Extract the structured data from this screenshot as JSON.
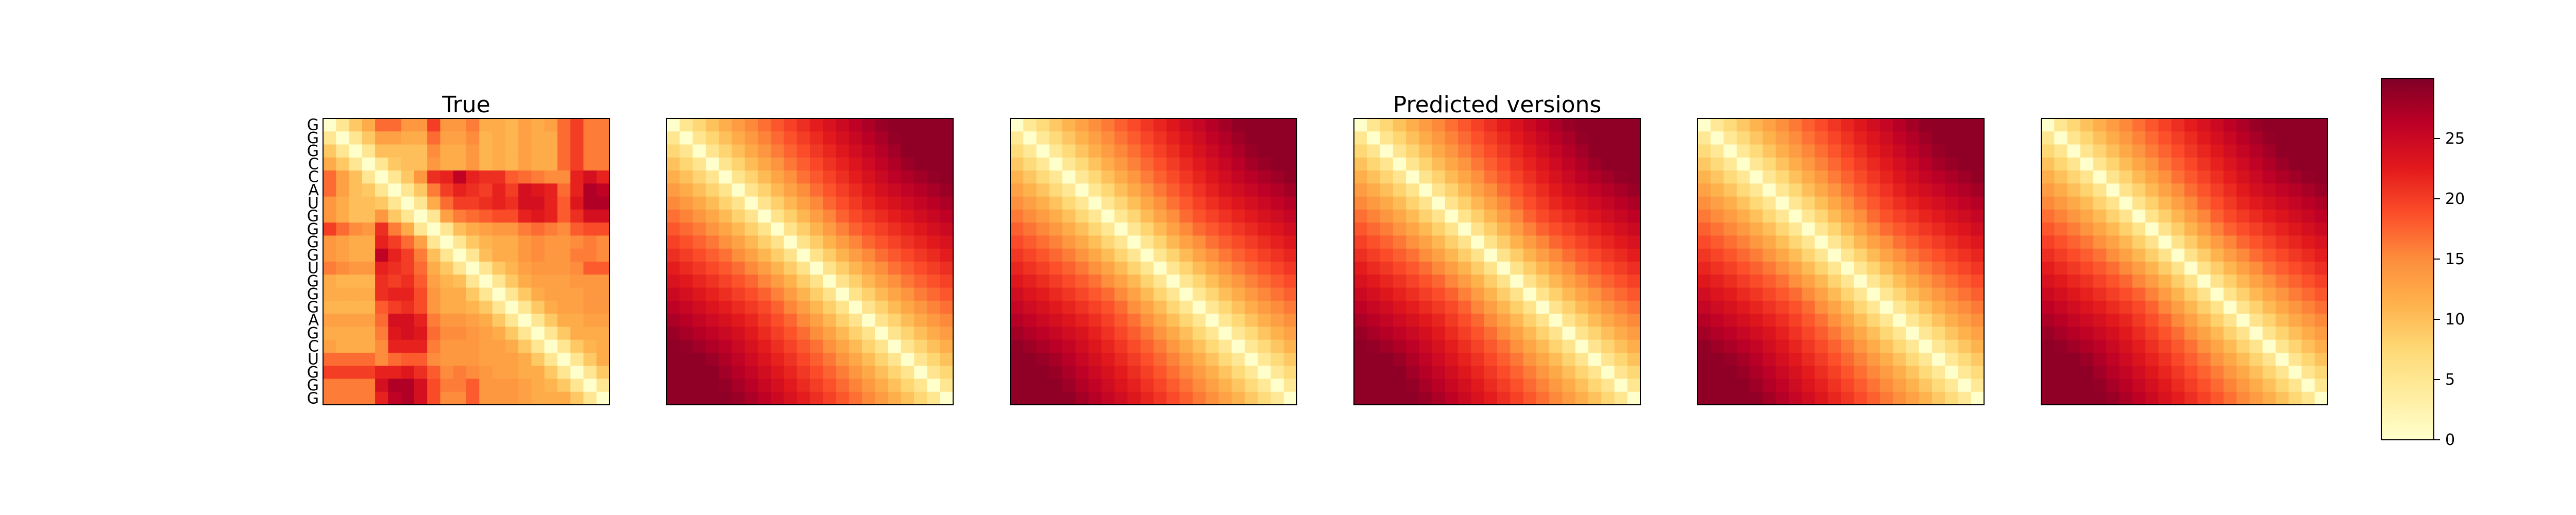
{
  "chart_data": {
    "type": "heatmap",
    "colormap": "YlOrRd",
    "sequence": [
      "G",
      "G",
      "G",
      "C",
      "C",
      "A",
      "U",
      "G",
      "G",
      "G",
      "G",
      "U",
      "G",
      "G",
      "G",
      "A",
      "G",
      "C",
      "U",
      "G",
      "G",
      "G"
    ],
    "panels": [
      {
        "title": "True",
        "kind": "true"
      },
      {
        "title": "",
        "kind": "predicted"
      },
      {
        "title": "",
        "kind": "predicted"
      },
      {
        "title": "Predicted versions",
        "kind": "predicted"
      },
      {
        "title": "",
        "kind": "predicted"
      },
      {
        "title": "",
        "kind": "predicted"
      }
    ],
    "colorbar": {
      "vmin": 0,
      "vmax": 30,
      "ticks": [
        0,
        5,
        10,
        15,
        20,
        25
      ],
      "tick_labels": [
        "0",
        "5",
        "10",
        "15",
        "20",
        "25"
      ]
    },
    "true_matrix_note": "",
    "true_values": [
      [
        0,
        5,
        9,
        12,
        17,
        17,
        14,
        14,
        20,
        14,
        14,
        16,
        12,
        12,
        11,
        13,
        12,
        13,
        17,
        20,
        16,
        16
      ],
      [
        5,
        0,
        5,
        9,
        13,
        13,
        12,
        12,
        17,
        13,
        13,
        15,
        11,
        12,
        11,
        13,
        12,
        12,
        17,
        20,
        16,
        16
      ],
      [
        9,
        5,
        0,
        5,
        10,
        10,
        10,
        10,
        15,
        12,
        12,
        14,
        11,
        12,
        11,
        13,
        12,
        12,
        17,
        20,
        16,
        16
      ],
      [
        12,
        9,
        5,
        0,
        5,
        9,
        10,
        10,
        14,
        12,
        12,
        14,
        11,
        12,
        11,
        13,
        12,
        12,
        17,
        20,
        16,
        16
      ],
      [
        17,
        13,
        10,
        5,
        0,
        5,
        9,
        14,
        21,
        22,
        26,
        22,
        21,
        21,
        18,
        17,
        16,
        15,
        15,
        22,
        24,
        22
      ],
      [
        17,
        13,
        10,
        9,
        5,
        0,
        5,
        9,
        16,
        20,
        22,
        21,
        20,
        22,
        20,
        24,
        23,
        22,
        17,
        22,
        27,
        26
      ],
      [
        14,
        12,
        10,
        10,
        9,
        5,
        0,
        5,
        12,
        17,
        20,
        20,
        21,
        22,
        21,
        24,
        24,
        22,
        18,
        23,
        27,
        27
      ],
      [
        14,
        12,
        10,
        10,
        14,
        9,
        5,
        0,
        5,
        13,
        16,
        17,
        18,
        19,
        19,
        22,
        23,
        22,
        18,
        21,
        24,
        24
      ],
      [
        20,
        17,
        15,
        14,
        21,
        16,
        12,
        5,
        0,
        5,
        10,
        12,
        13,
        14,
        14,
        16,
        17,
        16,
        15,
        18,
        19,
        19
      ],
      [
        14,
        13,
        12,
        12,
        22,
        20,
        17,
        13,
        5,
        0,
        5,
        9,
        11,
        12,
        12,
        14,
        15,
        14,
        14,
        15,
        16,
        15
      ],
      [
        14,
        13,
        12,
        12,
        26,
        22,
        20,
        16,
        10,
        5,
        0,
        5,
        10,
        12,
        12,
        14,
        15,
        14,
        14,
        16,
        16,
        15
      ],
      [
        16,
        15,
        14,
        14,
        22,
        21,
        20,
        17,
        12,
        9,
        5,
        0,
        5,
        9,
        11,
        13,
        14,
        14,
        14,
        15,
        18,
        18
      ],
      [
        12,
        11,
        11,
        11,
        21,
        20,
        21,
        18,
        13,
        11,
        10,
        5,
        0,
        5,
        9,
        12,
        13,
        13,
        13,
        14,
        14,
        14
      ],
      [
        12,
        12,
        12,
        12,
        21,
        22,
        22,
        19,
        14,
        12,
        12,
        9,
        5,
        0,
        5,
        9,
        12,
        13,
        13,
        13,
        14,
        14
      ],
      [
        11,
        11,
        11,
        11,
        18,
        20,
        21,
        19,
        14,
        12,
        12,
        11,
        9,
        5,
        0,
        5,
        9,
        12,
        13,
        13,
        14,
        14
      ],
      [
        13,
        13,
        13,
        13,
        17,
        24,
        24,
        22,
        16,
        14,
        14,
        13,
        12,
        9,
        5,
        0,
        5,
        9,
        12,
        12,
        13,
        13
      ],
      [
        12,
        12,
        12,
        12,
        16,
        23,
        24,
        23,
        17,
        15,
        15,
        14,
        13,
        12,
        9,
        5,
        0,
        5,
        9,
        12,
        12,
        12
      ],
      [
        13,
        12,
        12,
        12,
        15,
        22,
        22,
        22,
        16,
        14,
        14,
        14,
        13,
        13,
        12,
        9,
        5,
        0,
        5,
        9,
        11,
        12
      ],
      [
        17,
        17,
        17,
        17,
        15,
        17,
        18,
        18,
        15,
        14,
        14,
        14,
        13,
        13,
        13,
        12,
        9,
        5,
        0,
        5,
        9,
        12
      ],
      [
        20,
        20,
        20,
        20,
        22,
        22,
        23,
        21,
        18,
        15,
        16,
        15,
        14,
        13,
        13,
        12,
        12,
        9,
        5,
        0,
        5,
        9
      ],
      [
        16,
        16,
        16,
        16,
        24,
        27,
        27,
        24,
        19,
        16,
        16,
        18,
        14,
        14,
        14,
        13,
        12,
        11,
        9,
        5,
        0,
        5
      ],
      [
        16,
        16,
        16,
        16,
        22,
        26,
        27,
        24,
        19,
        15,
        15,
        18,
        14,
        14,
        14,
        13,
        12,
        12,
        12,
        9,
        5,
        0
      ]
    ],
    "predicted_peak": 29
  }
}
